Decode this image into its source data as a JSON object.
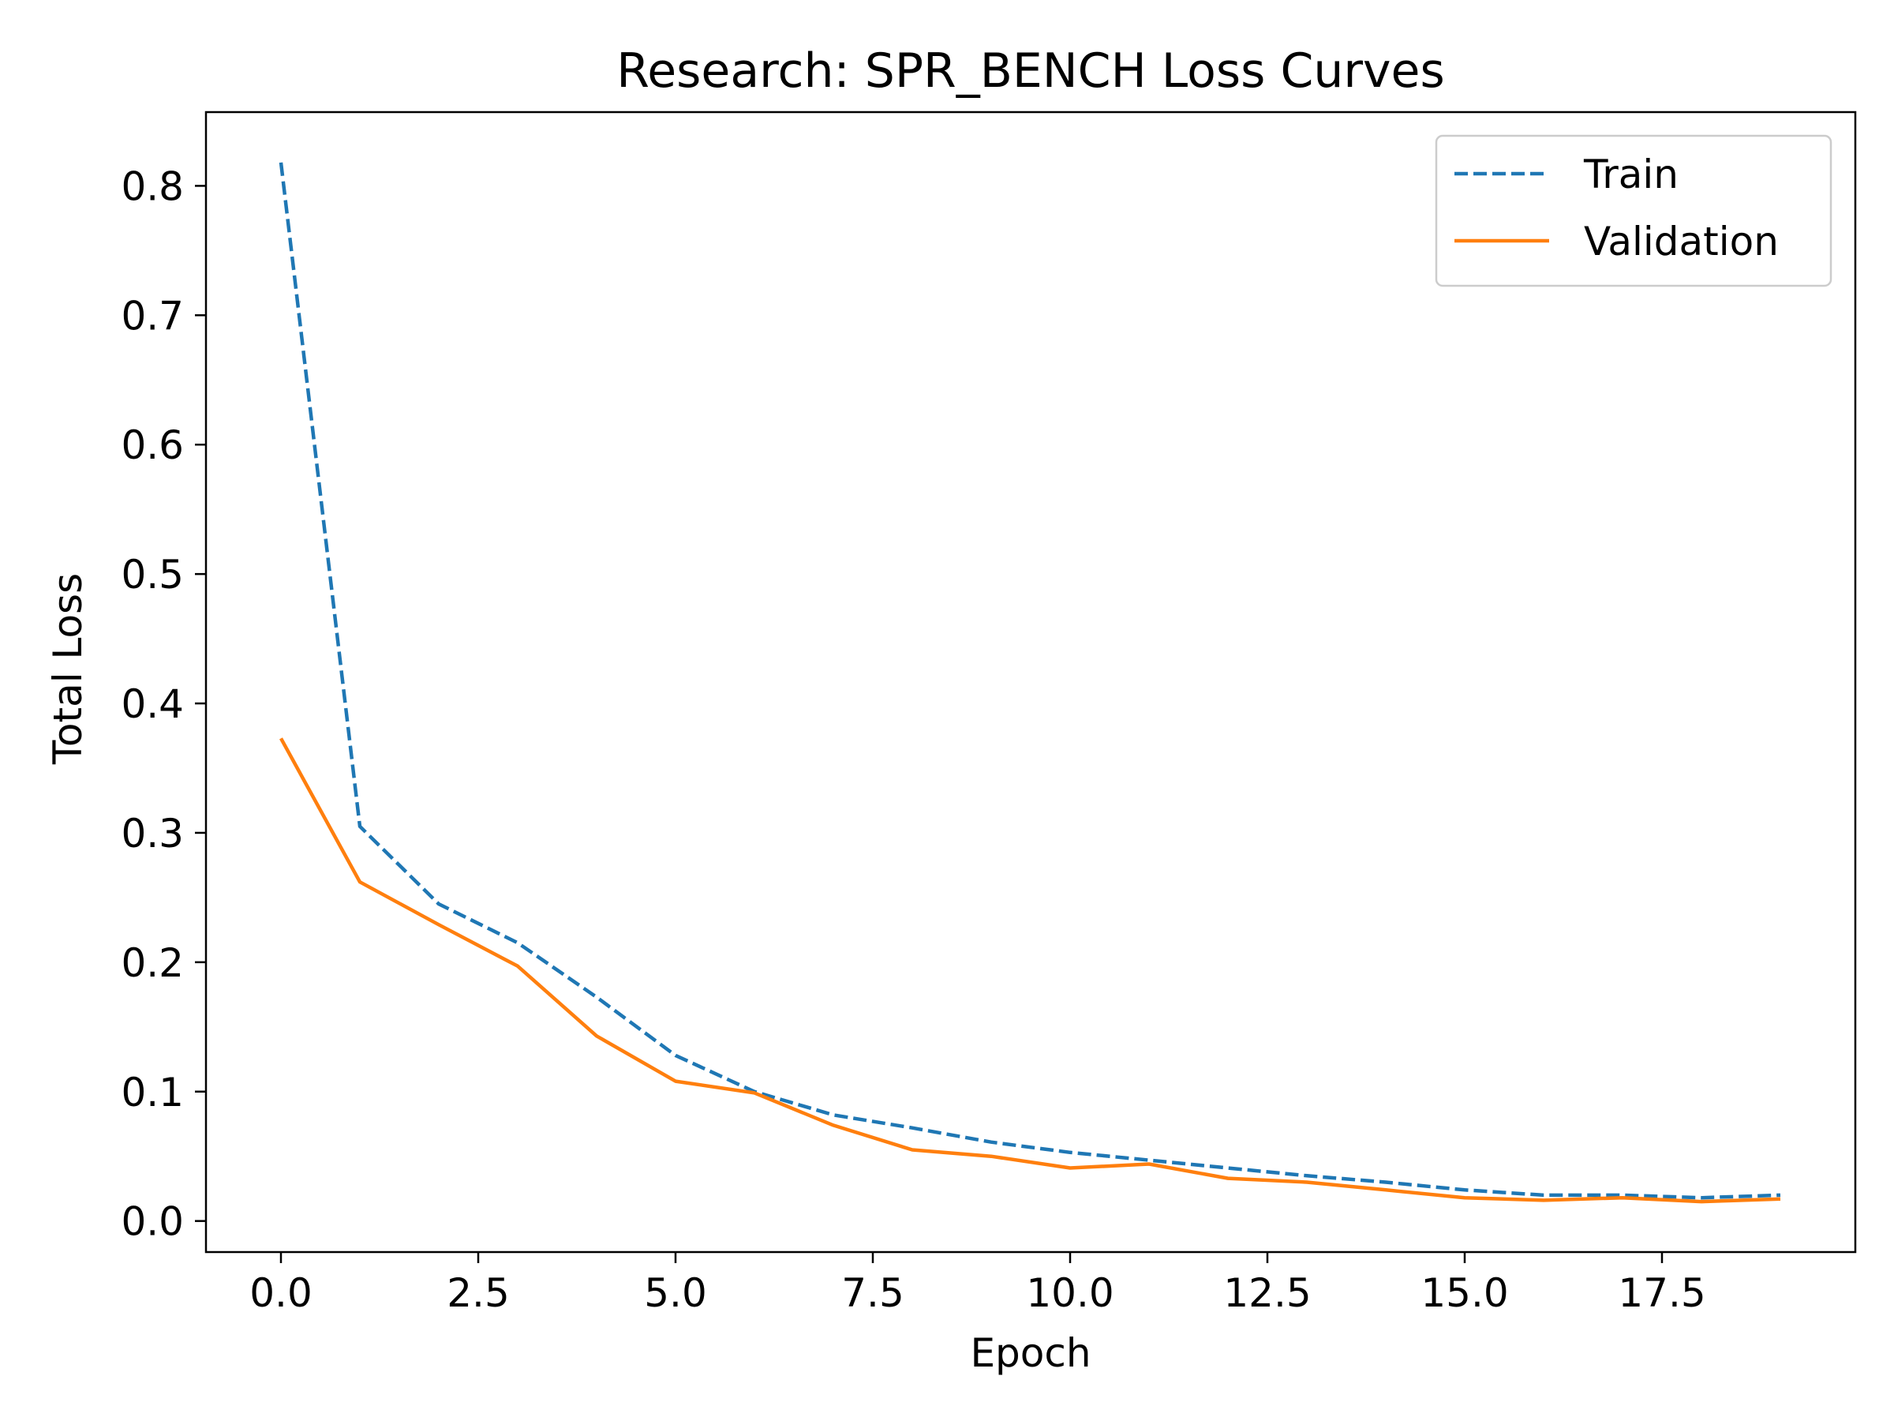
{
  "chart_data": {
    "type": "line",
    "title": "Research: SPR_BENCH Loss Curves",
    "xlabel": "Epoch",
    "ylabel": "Total Loss",
    "xlim": [
      -0.95,
      19.95
    ],
    "ylim": [
      -0.024,
      0.857
    ],
    "x_ticks": [
      0.0,
      2.5,
      5.0,
      7.5,
      10.0,
      12.5,
      15.0,
      17.5
    ],
    "x_tick_labels": [
      "0.0",
      "2.5",
      "5.0",
      "7.5",
      "10.0",
      "12.5",
      "15.0",
      "17.5"
    ],
    "y_ticks": [
      0.0,
      0.1,
      0.2,
      0.3,
      0.4,
      0.5,
      0.6,
      0.7,
      0.8
    ],
    "y_tick_labels": [
      "0.0",
      "0.1",
      "0.2",
      "0.3",
      "0.4",
      "0.5",
      "0.6",
      "0.7",
      "0.8"
    ],
    "grid": false,
    "legend_position": "top-right",
    "x": [
      0,
      1,
      2,
      3,
      4,
      5,
      6,
      7,
      8,
      9,
      10,
      11,
      12,
      13,
      14,
      15,
      16,
      17,
      18,
      19
    ],
    "series": [
      {
        "name": "Train",
        "color": "#1f77b4",
        "style": "dashed",
        "values": [
          0.818,
          0.305,
          0.245,
          0.215,
          0.173,
          0.128,
          0.1,
          0.082,
          0.072,
          0.061,
          0.053,
          0.047,
          0.041,
          0.035,
          0.03,
          0.024,
          0.02,
          0.02,
          0.018,
          0.02
        ]
      },
      {
        "name": "Validation",
        "color": "#ff7f0e",
        "style": "solid",
        "values": [
          0.373,
          0.262,
          0.229,
          0.197,
          0.143,
          0.108,
          0.099,
          0.074,
          0.055,
          0.05,
          0.041,
          0.044,
          0.033,
          0.03,
          0.024,
          0.018,
          0.016,
          0.018,
          0.015,
          0.017
        ]
      }
    ]
  }
}
